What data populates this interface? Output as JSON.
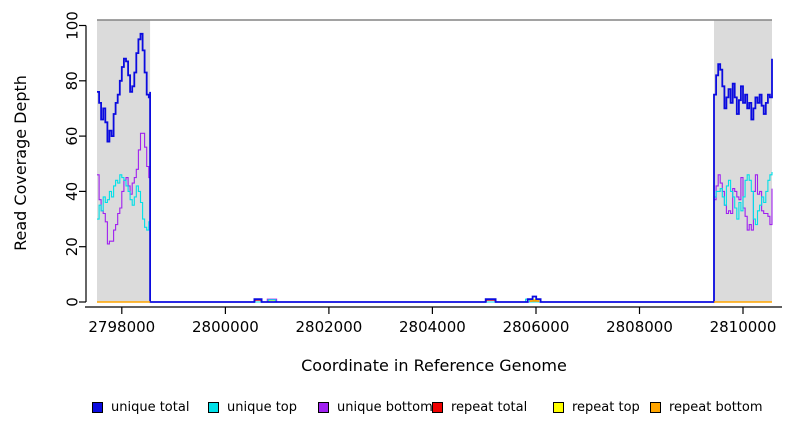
{
  "figure": {
    "xlabel": "Coordinate in Reference Genome",
    "ylabel": "Read Coverage Depth",
    "colors": {
      "unique_total": "#0b0bdf",
      "unique_top": "#00e0e8",
      "unique_bottom": "#a020f0",
      "repeat_total": "#ee0000",
      "repeat_top": "#ffff00",
      "repeat_bottom": "#ffa500",
      "shaded_region_fill": "#dbdbdb",
      "region_top_line": "#848484",
      "axis": "#000000"
    },
    "legend": [
      {
        "label": "unique total",
        "color": "#0b0bdf"
      },
      {
        "label": "unique top",
        "color": "#00e0e8"
      },
      {
        "label": "unique bottom",
        "color": "#a020f0"
      },
      {
        "label": "repeat total",
        "color": "#ee0000"
      },
      {
        "label": "repeat top",
        "color": "#ffff00"
      },
      {
        "label": "repeat bottom",
        "color": "#ffa500"
      }
    ]
  },
  "chart_data": {
    "type": "line",
    "title": "",
    "xlabel": "Coordinate in Reference Genome",
    "ylabel": "Read Coverage Depth",
    "xlim": [
      2797520,
      2810560
    ],
    "ylim": [
      -2,
      102
    ],
    "grid": false,
    "legend_position": "bottom",
    "x_ticks": [
      {
        "value": 2798000,
        "label": "2798000"
      },
      {
        "value": 2800000,
        "label": "2800000"
      },
      {
        "value": 2802000,
        "label": "2802000"
      },
      {
        "value": 2804000,
        "label": "2804000"
      },
      {
        "value": 2806000,
        "label": "2806000"
      },
      {
        "value": 2808000,
        "label": "2808000"
      },
      {
        "value": 2810000,
        "label": "2810000"
      }
    ],
    "y_ticks": [
      {
        "value": 0,
        "label": "0"
      },
      {
        "value": 20,
        "label": "20"
      },
      {
        "value": 40,
        "label": "40"
      },
      {
        "value": 60,
        "label": "60"
      },
      {
        "value": 80,
        "label": "80"
      },
      {
        "value": 100,
        "label": "100"
      }
    ],
    "shaded_regions": [
      {
        "x0": 2797520,
        "x1": 2798545
      },
      {
        "x0": 2809440,
        "x1": 2810560
      }
    ],
    "region_top_line_depth": 102,
    "series": [
      {
        "name": "repeat total",
        "color": "#ee0000",
        "width": 1.2,
        "paths": [
          [
            [
              2800570,
              0
            ],
            [
              2800570,
              0.7
            ],
            [
              2800690,
              0.7
            ],
            [
              2800690,
              0
            ]
          ],
          [
            [
              2805040,
              0
            ],
            [
              2805040,
              0.7
            ],
            [
              2805210,
              0.7
            ],
            [
              2805210,
              0
            ]
          ],
          [
            [
              2805950,
              0
            ],
            [
              2805950,
              0.8
            ],
            [
              2806000,
              0.8
            ],
            [
              2806000,
              0
            ]
          ]
        ]
      },
      {
        "name": "repeat top",
        "color": "#ffff00",
        "width": 1.2,
        "paths": [
          [
            [
              2800840,
              0
            ],
            [
              2800840,
              0.6
            ],
            [
              2800960,
              0.6
            ],
            [
              2800960,
              0
            ]
          ],
          [
            [
              2805940,
              0
            ],
            [
              2805940,
              0.9
            ],
            [
              2806010,
              0.9
            ],
            [
              2806010,
              0
            ]
          ]
        ]
      },
      {
        "name": "unique bottom",
        "color": "#a020f0",
        "width": 1.1,
        "paths": [
          [
            [
              2797520,
              46
            ],
            [
              2797560,
              37
            ],
            [
              2797600,
              33
            ],
            [
              2797640,
              32
            ],
            [
              2797680,
              29
            ],
            [
              2797720,
              21
            ],
            [
              2797760,
              22
            ],
            [
              2797800,
              22
            ],
            [
              2797840,
              26
            ],
            [
              2797880,
              28
            ],
            [
              2797920,
              32
            ],
            [
              2797960,
              34
            ],
            [
              2798000,
              40
            ],
            [
              2798040,
              44
            ],
            [
              2798080,
              45
            ],
            [
              2798120,
              42
            ],
            [
              2798160,
              39
            ],
            [
              2798200,
              43
            ],
            [
              2798240,
              45
            ],
            [
              2798280,
              48
            ],
            [
              2798320,
              55
            ],
            [
              2798360,
              61
            ],
            [
              2798400,
              61
            ],
            [
              2798440,
              56
            ],
            [
              2798480,
              49
            ],
            [
              2798520,
              45
            ],
            [
              2798545,
              24
            ],
            [
              2798545,
              0
            ],
            [
              2800810,
              0
            ],
            [
              2800810,
              1
            ],
            [
              2800990,
              1
            ],
            [
              2800990,
              0
            ],
            [
              2809440,
              0
            ],
            [
              2809440,
              37
            ],
            [
              2809480,
              42
            ],
            [
              2809520,
              46
            ],
            [
              2809560,
              43
            ],
            [
              2809600,
              40
            ],
            [
              2809640,
              35
            ],
            [
              2809680,
              32
            ],
            [
              2809720,
              33
            ],
            [
              2809760,
              32
            ],
            [
              2809800,
              41
            ],
            [
              2809840,
              40
            ],
            [
              2809880,
              38
            ],
            [
              2809920,
              37
            ],
            [
              2809960,
              45
            ],
            [
              2810000,
              34
            ],
            [
              2810040,
              31
            ],
            [
              2810080,
              26
            ],
            [
              2810120,
              28
            ],
            [
              2810160,
              26
            ],
            [
              2810200,
              40
            ],
            [
              2810240,
              46
            ],
            [
              2810280,
              39
            ],
            [
              2810320,
              40
            ],
            [
              2810360,
              33
            ],
            [
              2810400,
              32
            ],
            [
              2810440,
              32
            ],
            [
              2810480,
              31
            ],
            [
              2810520,
              28
            ],
            [
              2810560,
              41
            ]
          ]
        ]
      },
      {
        "name": "unique top",
        "color": "#00e0e8",
        "width": 1.1,
        "paths": [
          [
            [
              2797520,
              30
            ],
            [
              2797560,
              35
            ],
            [
              2797600,
              33
            ],
            [
              2797640,
              38
            ],
            [
              2797680,
              36
            ],
            [
              2797720,
              37
            ],
            [
              2797760,
              40
            ],
            [
              2797800,
              38
            ],
            [
              2797840,
              42
            ],
            [
              2797880,
              44
            ],
            [
              2797920,
              43
            ],
            [
              2797960,
              46
            ],
            [
              2798000,
              45
            ],
            [
              2798040,
              44
            ],
            [
              2798080,
              42
            ],
            [
              2798120,
              40
            ],
            [
              2798160,
              37
            ],
            [
              2798200,
              35
            ],
            [
              2798240,
              38
            ],
            [
              2798280,
              42
            ],
            [
              2798320,
              40
            ],
            [
              2798360,
              36
            ],
            [
              2798400,
              30
            ],
            [
              2798440,
              27
            ],
            [
              2798480,
              26
            ],
            [
              2798520,
              29
            ],
            [
              2798545,
              52
            ],
            [
              2798545,
              0
            ],
            [
              2800830,
              0
            ],
            [
              2800830,
              0.8
            ],
            [
              2800970,
              0.8
            ],
            [
              2800970,
              0
            ],
            [
              2805800,
              0
            ],
            [
              2805800,
              1
            ],
            [
              2805880,
              1
            ],
            [
              2805880,
              0
            ],
            [
              2809440,
              0
            ],
            [
              2809440,
              38
            ],
            [
              2809480,
              40
            ],
            [
              2809520,
              40
            ],
            [
              2809560,
              41
            ],
            [
              2809600,
              38
            ],
            [
              2809640,
              35
            ],
            [
              2809680,
              42
            ],
            [
              2809720,
              44
            ],
            [
              2809760,
              40
            ],
            [
              2809800,
              38
            ],
            [
              2809840,
              34
            ],
            [
              2809880,
              30
            ],
            [
              2809920,
              36
            ],
            [
              2809960,
              33
            ],
            [
              2810000,
              38
            ],
            [
              2810040,
              44
            ],
            [
              2810080,
              46
            ],
            [
              2810120,
              44
            ],
            [
              2810160,
              40
            ],
            [
              2810200,
              30
            ],
            [
              2810240,
              28
            ],
            [
              2810280,
              33
            ],
            [
              2810320,
              35
            ],
            [
              2810360,
              38
            ],
            [
              2810400,
              36
            ],
            [
              2810440,
              40
            ],
            [
              2810480,
              44
            ],
            [
              2810520,
              46
            ],
            [
              2810560,
              47
            ]
          ]
        ]
      },
      {
        "name": "unique total",
        "color": "#0b0bdf",
        "width": 1.8,
        "paths": [
          [
            [
              2797520,
              76
            ],
            [
              2797560,
              72
            ],
            [
              2797600,
              66
            ],
            [
              2797640,
              70
            ],
            [
              2797680,
              65
            ],
            [
              2797720,
              58
            ],
            [
              2797760,
              62
            ],
            [
              2797800,
              60
            ],
            [
              2797840,
              68
            ],
            [
              2797880,
              72
            ],
            [
              2797920,
              75
            ],
            [
              2797960,
              80
            ],
            [
              2798000,
              85
            ],
            [
              2798040,
              88
            ],
            [
              2798080,
              87
            ],
            [
              2798120,
              82
            ],
            [
              2798160,
              76
            ],
            [
              2798200,
              78
            ],
            [
              2798240,
              83
            ],
            [
              2798280,
              90
            ],
            [
              2798320,
              95
            ],
            [
              2798360,
              97
            ],
            [
              2798400,
              91
            ],
            [
              2798440,
              83
            ],
            [
              2798480,
              75
            ],
            [
              2798520,
              74
            ],
            [
              2798545,
              76
            ],
            [
              2798545,
              0
            ],
            [
              2800560,
              0
            ],
            [
              2800560,
              1
            ],
            [
              2800700,
              1
            ],
            [
              2800700,
              0
            ],
            [
              2805030,
              0
            ],
            [
              2805030,
              1
            ],
            [
              2805220,
              1
            ],
            [
              2805220,
              0
            ],
            [
              2805840,
              0
            ],
            [
              2805840,
              1
            ],
            [
              2805935,
              1
            ],
            [
              2805935,
              2
            ],
            [
              2806005,
              2
            ],
            [
              2806005,
              1
            ],
            [
              2806090,
              1
            ],
            [
              2806090,
              0
            ],
            [
              2809440,
              0
            ],
            [
              2809440,
              75
            ],
            [
              2809480,
              82
            ],
            [
              2809520,
              86
            ],
            [
              2809560,
              84
            ],
            [
              2809600,
              78
            ],
            [
              2809640,
              70
            ],
            [
              2809680,
              74
            ],
            [
              2809720,
              77
            ],
            [
              2809760,
              72
            ],
            [
              2809800,
              79
            ],
            [
              2809840,
              74
            ],
            [
              2809880,
              68
            ],
            [
              2809920,
              73
            ],
            [
              2809960,
              78
            ],
            [
              2810000,
              72
            ],
            [
              2810040,
              75
            ],
            [
              2810080,
              70
            ],
            [
              2810120,
              72
            ],
            [
              2810160,
              66
            ],
            [
              2810200,
              70
            ],
            [
              2810240,
              74
            ],
            [
              2810280,
              72
            ],
            [
              2810320,
              75
            ],
            [
              2810360,
              71
            ],
            [
              2810400,
              68
            ],
            [
              2810440,
              72
            ],
            [
              2810480,
              75
            ],
            [
              2810520,
              74
            ],
            [
              2810560,
              88
            ]
          ]
        ]
      },
      {
        "name": "repeat bottom",
        "color": "#ffa500",
        "width": 1.6,
        "paths": [
          [
            [
              2797520,
              0
            ],
            [
              2798545,
              0
            ]
          ],
          [
            [
              2805900,
              0
            ],
            [
              2805900,
              0.4
            ],
            [
              2806050,
              0.4
            ],
            [
              2806050,
              0
            ]
          ],
          [
            [
              2809440,
              0
            ],
            [
              2810560,
              0
            ]
          ]
        ]
      }
    ]
  }
}
